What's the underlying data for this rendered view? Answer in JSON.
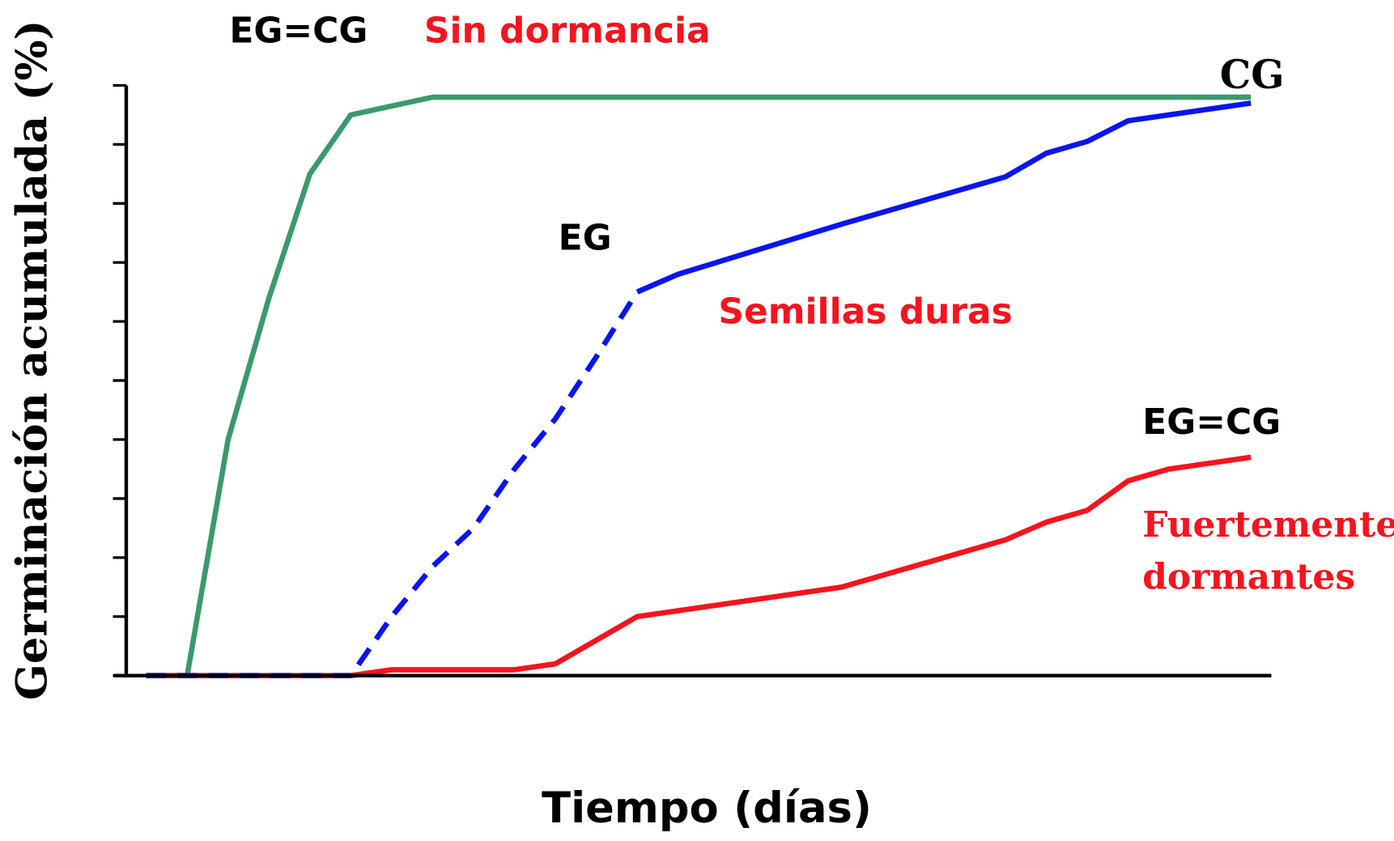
{
  "chart_data": {
    "type": "line",
    "y_label": "Germinación acumulada (%)",
    "x_label": "Tiempo (días)",
    "xlim": [
      -0.75,
      27.5
    ],
    "ylim": [
      0,
      100
    ],
    "yticks": [
      0,
      10,
      20,
      30,
      40,
      50,
      60,
      70,
      80,
      90,
      100
    ],
    "series": [
      {
        "color": "#3a9a6c",
        "dashed": false,
        "x": [
          0,
          1,
          2,
          3,
          4,
          5,
          6,
          7,
          27
        ],
        "values": [
          0,
          0,
          40,
          64,
          85,
          95,
          96.5,
          98,
          98
        ]
      },
      {
        "color": "#f5141e",
        "dashed": false,
        "x": [
          0,
          5,
          6,
          9,
          10,
          12,
          17,
          21,
          22,
          23,
          24,
          25,
          27
        ],
        "values": [
          0,
          0,
          1,
          1,
          2,
          10,
          15,
          23,
          26,
          28,
          33,
          35,
          37
        ]
      },
      {
        "color": "#0a14f0",
        "dashed": true,
        "x": [
          0,
          5,
          6,
          7,
          8,
          9,
          10,
          11,
          12
        ],
        "values": [
          0,
          0,
          10,
          18.5,
          25,
          35,
          43.5,
          54,
          65
        ]
      },
      {
        "color": "#0a14f0",
        "dashed": false,
        "x": [
          12,
          13,
          17,
          21,
          22,
          23,
          24,
          27
        ],
        "values": [
          65,
          68,
          76.5,
          84.5,
          88.5,
          90.5,
          94,
          97
        ]
      }
    ],
    "annotations": [
      {
        "text": "EG=CG",
        "color": "#000000"
      },
      {
        "text": "Sin dormancia",
        "color": "#f5141e"
      },
      {
        "text": "CG",
        "color": "#000000"
      },
      {
        "text": "EG",
        "color": "#000000"
      },
      {
        "text": "Semillas duras",
        "color": "#f5141e"
      },
      {
        "text": "EG=CG",
        "color": "#000000"
      },
      {
        "text": "Fuertemente",
        "color": "#f5141e"
      },
      {
        "text": "dormantes",
        "color": "#f5141e"
      }
    ]
  }
}
